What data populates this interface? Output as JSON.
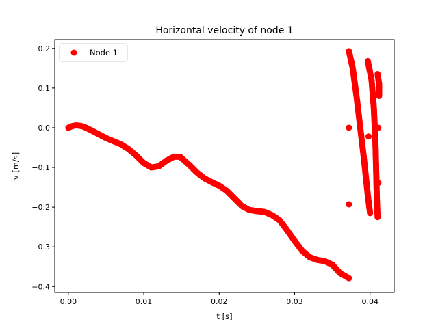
{
  "chart_data": {
    "type": "scatter",
    "title": "Horizontal velocity of node 1",
    "xlabel": "t [s]",
    "ylabel": "v [m/s]",
    "xlim": [
      -0.0018,
      0.0432
    ],
    "ylim": [
      -0.415,
      0.222
    ],
    "xticks": [
      0.0,
      0.01,
      0.02,
      0.03,
      0.04
    ],
    "xtick_labels": [
      "0.00",
      "0.01",
      "0.02",
      "0.03",
      "0.04"
    ],
    "yticks": [
      -0.4,
      -0.3,
      -0.2,
      -0.1,
      0.0,
      0.1,
      0.2
    ],
    "ytick_labels": [
      "−0.4",
      "−0.3",
      "−0.2",
      "−0.1",
      "0.0",
      "0.1",
      "0.2"
    ],
    "grid": false,
    "legend_position": "top-left",
    "marker_color": "#ff0000",
    "series": [
      {
        "name": "Node 1",
        "curves": [
          [
            [
              0.0,
              0.0
            ],
            [
              0.0005,
              0.004
            ],
            [
              0.001,
              0.006
            ],
            [
              0.0015,
              0.005
            ],
            [
              0.002,
              0.003
            ],
            [
              0.003,
              -0.006
            ],
            [
              0.004,
              -0.016
            ],
            [
              0.005,
              -0.026
            ],
            [
              0.006,
              -0.034
            ],
            [
              0.007,
              -0.042
            ],
            [
              0.008,
              -0.054
            ],
            [
              0.009,
              -0.07
            ],
            [
              0.01,
              -0.089
            ],
            [
              0.011,
              -0.1
            ],
            [
              0.012,
              -0.097
            ],
            [
              0.013,
              -0.083
            ],
            [
              0.014,
              -0.073
            ],
            [
              0.0148,
              -0.073
            ],
            [
              0.016,
              -0.093
            ],
            [
              0.017,
              -0.112
            ],
            [
              0.018,
              -0.127
            ],
            [
              0.019,
              -0.137
            ],
            [
              0.02,
              -0.146
            ],
            [
              0.021,
              -0.159
            ],
            [
              0.022,
              -0.178
            ],
            [
              0.023,
              -0.197
            ],
            [
              0.024,
              -0.207
            ],
            [
              0.025,
              -0.21
            ],
            [
              0.026,
              -0.212
            ],
            [
              0.027,
              -0.22
            ],
            [
              0.028,
              -0.233
            ],
            [
              0.029,
              -0.258
            ],
            [
              0.03,
              -0.285
            ],
            [
              0.031,
              -0.31
            ],
            [
              0.032,
              -0.326
            ],
            [
              0.033,
              -0.333
            ],
            [
              0.034,
              -0.336
            ],
            [
              0.035,
              -0.345
            ],
            [
              0.036,
              -0.366
            ],
            [
              0.0372,
              -0.379
            ]
          ],
          [
            [
              0.0372,
              0.193
            ],
            [
              0.0377,
              0.15
            ],
            [
              0.0382,
              0.08
            ],
            [
              0.0387,
              0.0
            ],
            [
              0.0392,
              -0.08
            ],
            [
              0.0397,
              -0.17
            ],
            [
              0.04,
              -0.215
            ]
          ],
          [
            [
              0.0397,
              0.168
            ],
            [
              0.0402,
              0.12
            ],
            [
              0.0405,
              0.05
            ],
            [
              0.0407,
              -0.03
            ],
            [
              0.0408,
              -0.1
            ],
            [
              0.0409,
              -0.18
            ],
            [
              0.041,
              -0.225
            ]
          ],
          [
            [
              0.041,
              0.135
            ],
            [
              0.0412,
              0.11
            ],
            [
              0.0412,
              0.08
            ]
          ]
        ],
        "isolated_points": [
          [
            0.0372,
            0.0
          ],
          [
            0.0372,
            -0.193
          ],
          [
            0.0398,
            -0.022
          ],
          [
            0.0411,
            0.0
          ],
          [
            0.0411,
            -0.139
          ]
        ]
      }
    ]
  }
}
